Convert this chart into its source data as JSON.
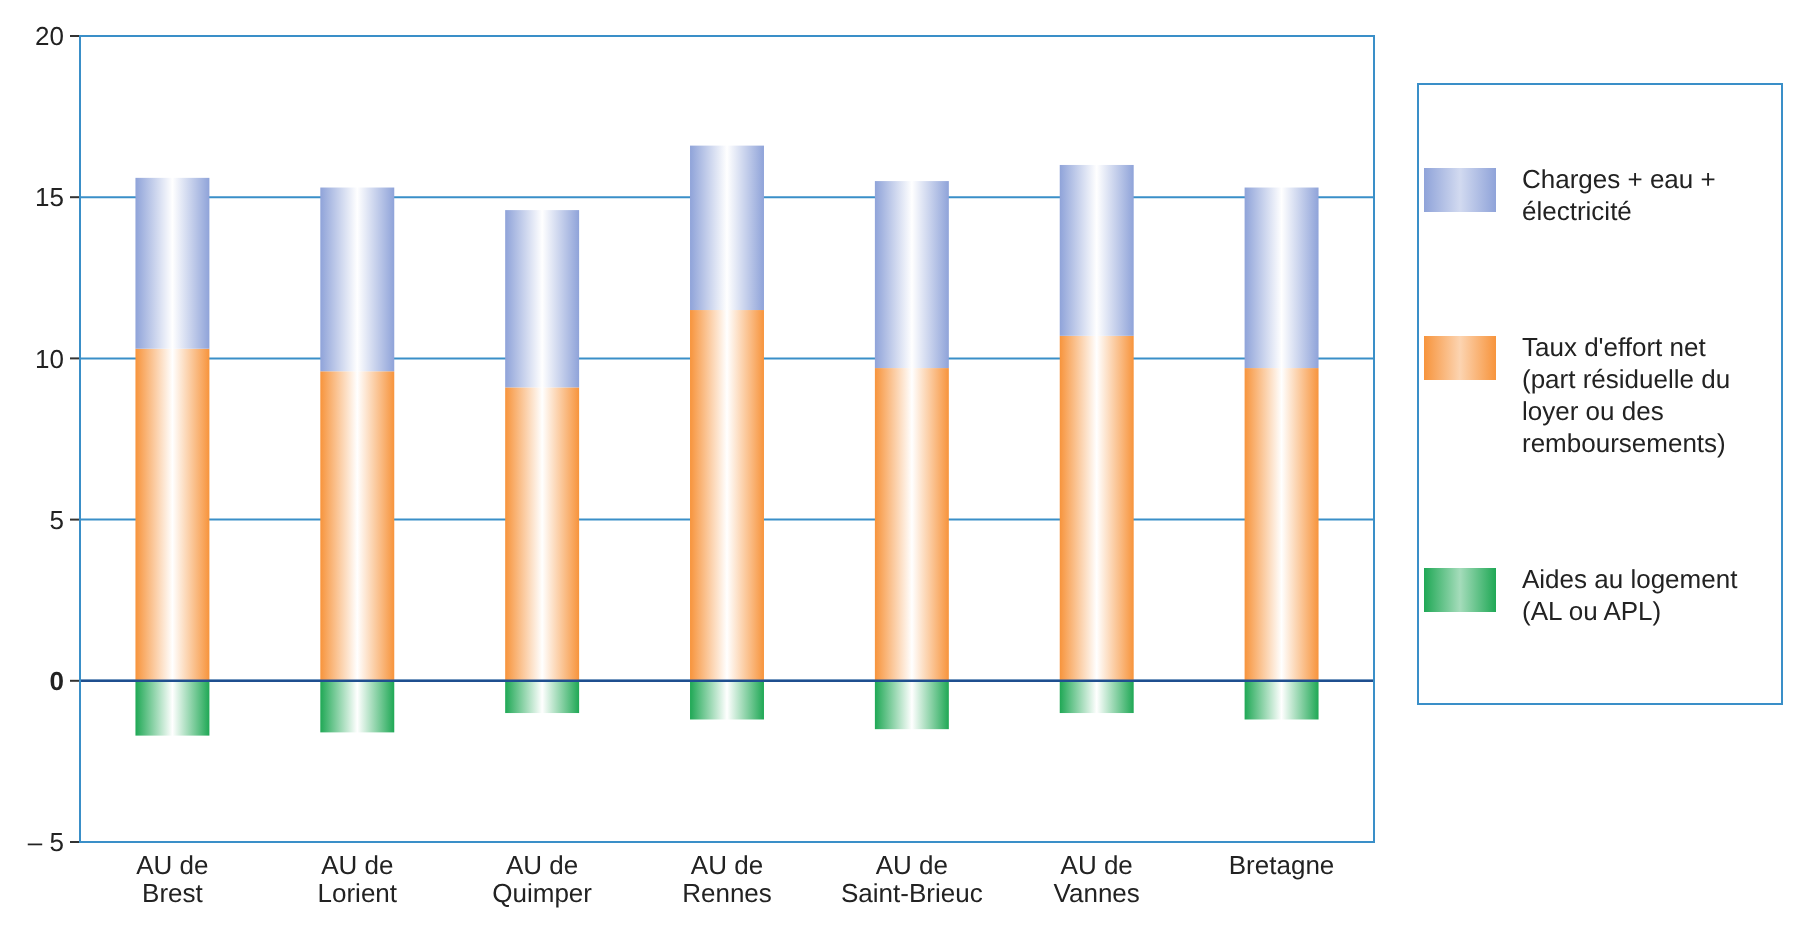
{
  "chart_data": {
    "type": "bar",
    "stacked": true,
    "categories": [
      "AU de Brest",
      "AU de Lorient",
      "AU de Quimper",
      "AU de Rennes",
      "AU de Saint-Brieuc",
      "AU de Vannes",
      "Bretagne"
    ],
    "series": [
      {
        "name": "Taux d'effort net (part résiduelle du loyer ou des remboursements)",
        "color": "#f7943c",
        "values": [
          10.3,
          9.6,
          9.1,
          11.5,
          9.7,
          10.7,
          9.7
        ]
      },
      {
        "name": "Charges + eau + électricité",
        "color": "#8fa3d9",
        "values": [
          5.3,
          5.7,
          5.5,
          5.1,
          5.8,
          5.3,
          5.6
        ]
      },
      {
        "name": "Aides au logement (AL ou APL)",
        "color": "#1fa855",
        "values": [
          -1.7,
          -1.6,
          -1.0,
          -1.2,
          -1.5,
          -1.0,
          -1.2
        ]
      }
    ],
    "ylim": [
      -5,
      20
    ],
    "yticks": [
      {
        "value": -5,
        "label": "– 5"
      },
      0,
      5,
      10,
      15,
      20
    ],
    "grid": "y",
    "legend": "right",
    "ref_lines": [
      {
        "axis": "y",
        "value": 0,
        "color": "#1f4f8f"
      }
    ]
  }
}
